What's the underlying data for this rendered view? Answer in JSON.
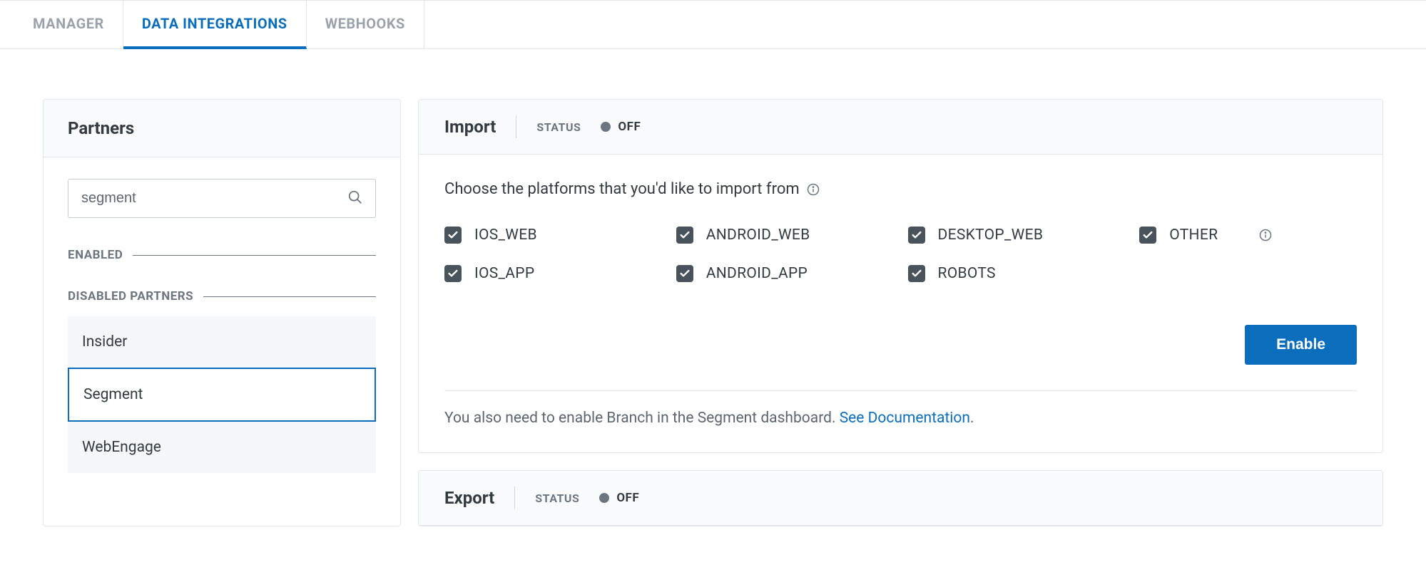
{
  "tabs": {
    "items": [
      {
        "label": "MANAGER",
        "slug": "manager",
        "active": false
      },
      {
        "label": "DATA INTEGRATIONS",
        "slug": "data-integrations",
        "active": true
      },
      {
        "label": "WEBHOOKS",
        "slug": "webhooks",
        "active": false
      }
    ]
  },
  "sidebar": {
    "title": "Partners",
    "search_value": "segment",
    "enabled_label": "ENABLED",
    "disabled_label": "DISABLED PARTNERS",
    "disabled_partners": [
      {
        "name": "Insider",
        "selected": false
      },
      {
        "name": "Segment",
        "selected": true
      },
      {
        "name": "WebEngage",
        "selected": false
      }
    ]
  },
  "import_card": {
    "title": "Import",
    "status_label": "STATUS",
    "status_value": "OFF",
    "prompt": "Choose the platforms that you'd like to import from",
    "platforms": [
      {
        "key": "IOS_WEB",
        "checked": true
      },
      {
        "key": "ANDROID_WEB",
        "checked": true
      },
      {
        "key": "DESKTOP_WEB",
        "checked": true
      },
      {
        "key": "OTHER",
        "checked": true,
        "has_info": true
      },
      {
        "key": "IOS_APP",
        "checked": true
      },
      {
        "key": "ANDROID_APP",
        "checked": true
      },
      {
        "key": "ROBOTS",
        "checked": true
      }
    ],
    "enable_button": "Enable",
    "helper_pre": "You also need to enable Branch in the Segment dashboard. ",
    "helper_link": "See Documentation",
    "helper_post": "."
  },
  "export_card": {
    "title": "Export",
    "status_label": "STATUS",
    "status_value": "OFF"
  },
  "colors": {
    "primary": "#0a6ebd",
    "border": "#e3e6e8",
    "muted": "#6b7680",
    "text": "#333a40",
    "checkbox_bg": "#49535c",
    "panel_bg": "#fafbfc",
    "item_bg": "#f5f8fb"
  }
}
